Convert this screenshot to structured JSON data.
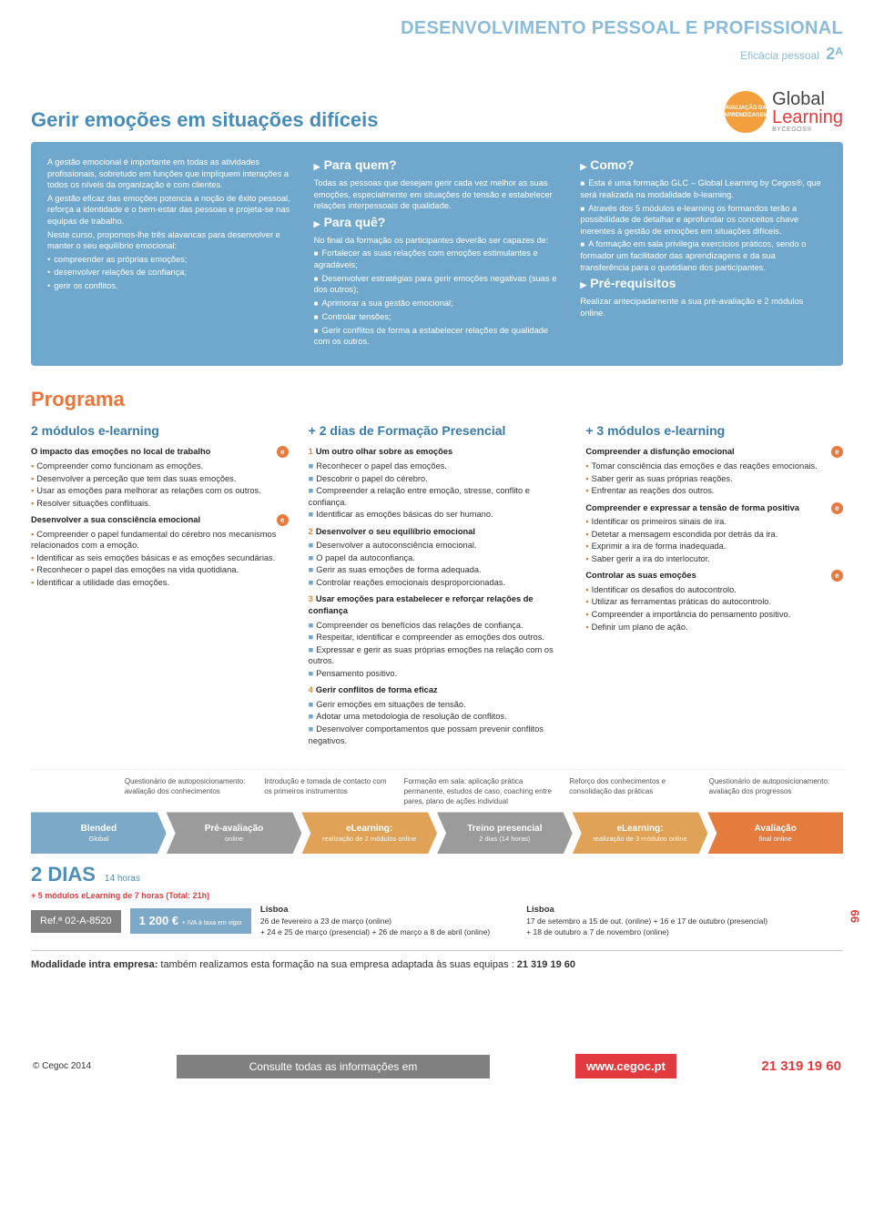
{
  "header": {
    "category": "DESENVOLVIMENTO PESSOAL E PROFISSIONAL",
    "subcategory": "Eficácia pessoal",
    "code": "2ᴬ"
  },
  "course": {
    "title": "Gerir emoções em situações difíceis",
    "badge": "AVALIAÇÃO DA APRENDIZAGEM",
    "logo_global": "Global",
    "logo_learning": "Learning",
    "logo_by": "BYCEGOS®"
  },
  "info": {
    "c1": {
      "p": [
        "A gestão emocional é importante em todas as atividades profissionais, sobretudo em funções que impliquem interações a todos os níveis da organização e com clientes.",
        "A gestão eficaz das emoções potencia a noção de êxito pessoal, reforça a identidade e o bem-estar das pessoas e projeta-se nas equipas de trabalho.",
        "Neste curso, propomos-lhe três alavancas para desenvolver e manter o seu equilíbrio emocional:"
      ],
      "b": [
        "compreender as próprias emoções;",
        "desenvolver relações de confiança;",
        "gerir os conflitos."
      ]
    },
    "c2": {
      "h1": "Para quem?",
      "p1": "Todas as pessoas que desejam gerir cada vez melhor as suas emoções, especialmente em situações de tensão e estabelecer relações interpessoais de qualidade.",
      "h2": "Para quê?",
      "p2": "No final da formação os participantes deverão ser capazes de:",
      "b": [
        "Fortalecer as suas relações com emoções estimulantes e agradáveis;",
        "Desenvolver estratégias para gerir emoções negativas (suas e dos outros);",
        "Aprimorar a sua gestão emocional;",
        "Controlar tensões;",
        "Gerir conflitos de forma a estabelecer relações de qualidade com os outros."
      ]
    },
    "c3": {
      "h1": "Como?",
      "b": [
        "Esta é uma formação GLC – Global Learning by Cegos®, que será realizada na modalidade b-learning.",
        "Através dos 5 módulos e-learning os formandos terão a possibilidade de detalhar e aprofundar os conceitos chave inerentes à gestão de emoções em situações difíceis.",
        "A formação em sala privilegia exercícios práticos, sendo o formador um facilitador das aprendizagens e da sua transferência para o quotidiano dos participantes."
      ],
      "h2": "Pré-requisitos",
      "p2": "Realizar antecipadamente a sua pré-avaliação e 2 módulos online."
    }
  },
  "programa": {
    "title": "Programa",
    "col1": {
      "sub": "2 módulos e-learning",
      "m1": "O impacto das emoções no local de trabalho",
      "m1i": [
        "Compreender como funcionam as emoções.",
        "Desenvolver a perceção que tem das suas emoções.",
        "Usar as emoções para melhorar as relações com os outros.",
        "Resolver situações conflituais."
      ],
      "m2": "Desenvolver a sua consciência emocional",
      "m2i": [
        "Compreender o papel fundamental do cérebro nos mecanismos relacionados com a emoção.",
        "Identificar as seis emoções básicas e as emoções secundárias.",
        "Reconhecer o papel das emoções na vida quotidiana.",
        "Identificar a utilidade das emoções."
      ]
    },
    "col2": {
      "sub": "2 dias de Formação Presencial",
      "m1": {
        "n": "1",
        "t": "Um outro olhar sobre as emoções"
      },
      "m1i": [
        "Reconhecer o papel das emoções.",
        "Descobrir o papel do cérebro.",
        "Compreender a relação entre emoção, stresse, conflito e confiança.",
        "Identificar as emoções básicas do ser humano."
      ],
      "m2": {
        "n": "2",
        "t": "Desenvolver o seu equilíbrio emocional"
      },
      "m2i": [
        "Desenvolver a autoconsciência emocional.",
        "O papel da autoconfiança.",
        "Gerir as suas emoções de forma adequada.",
        "Controlar reações emocionais desproporcionadas."
      ],
      "m3": {
        "n": "3",
        "t": "Usar emoções para estabelecer e reforçar relações de confiança"
      },
      "m3i": [
        "Compreender os benefícios das relações de confiança.",
        "Respeitar, identificar e compreender as emoções dos outros.",
        "Expressar e gerir as suas próprias emoções na relação com os outros.",
        "Pensamento positivo."
      ],
      "m4": {
        "n": "4",
        "t": "Gerir conflitos de forma eficaz"
      },
      "m4i": [
        "Gerir emoções em situações de tensão.",
        "Adotar uma metodologia de resolução de conflitos.",
        "Desenvolver comportamentos que possam prevenir conflitos negativos."
      ]
    },
    "col3": {
      "sub": "3 módulos e-learning",
      "m1": "Compreender a disfunção emocional",
      "m1i": [
        "Tomar consciência das emoções e das reações emocionais.",
        "Saber gerir as suas próprias reações.",
        "Enfrentar as reações dos outros."
      ],
      "m2": "Compreender e expressar a tensão de forma positiva",
      "m2i": [
        "Identificar os primeiros sinais de ira.",
        "Detetar a mensagem escondida por detrás da ira.",
        "Exprimir a ira de forma inadequada.",
        "Saber gerir a ira do interlocutor."
      ],
      "m3": "Controlar as suas emoções",
      "m3i": [
        "Identificar os desafios do autocontrolo.",
        "Utilizar as ferramentas práticas do autocontrolo.",
        "Compreender a importância do pensamento positivo.",
        "Definir um plano de ação."
      ]
    }
  },
  "timeline": {
    "descs": [
      "Questionário de autoposicionamento: avaliação dos conhecimentos",
      "Introdução e tomada de contacto com os primeiros instrumentos",
      "Formação em sala: aplicação prática permanente, estudos de caso, coaching entre pares, plano de ações individual",
      "Reforço dos conhecimentos e consolidação das práticas",
      "Questionário de autoposicionamento: avaliação dos progressos"
    ],
    "segs": [
      {
        "t": "Blended",
        "s": "Global",
        "c": "#7ca9c7"
      },
      {
        "t": "Pré-avaliação",
        "s": "online",
        "c": "#9b9b9b"
      },
      {
        "t": "eLearning:",
        "s": "realização de 2 módulos online",
        "c": "#dfa256"
      },
      {
        "t": "Treino presencial",
        "s": "2 dias (14 horas)",
        "c": "#9b9b9b"
      },
      {
        "t": "eLearning:",
        "s": "realização de 3 módulos online",
        "c": "#dfa256"
      },
      {
        "t": "Avaliação",
        "s": "final online",
        "c": "#e67b3e"
      }
    ]
  },
  "meta": {
    "days": "2 DIAS",
    "hours": "14 horas",
    "red": "+ 5 módulos eLearning de 7 horas (Total: 21h)",
    "ref": "Ref.ª 02-A-8520",
    "price": "1 200 €",
    "price_note": "+ IVA à taxa em vigor",
    "city1": "Lisboa",
    "city1l1": "26 de fevereiro a 23 de março (online)",
    "city1l2": "+ 24 e 25 de março (presencial) + 26 de março a 8 de abril (online)",
    "city2": "Lisboa",
    "city2l1": "17 de setembro a 15 de out. (online) + 16 e 17 de outubro (presencial)",
    "city2l2": "+ 18 de outubro a 7 de novembro (online)",
    "modal_b": "Modalidade intra empresa:",
    "modal_t": " também realizamos esta formação na sua empresa adaptada às suas equipas : ",
    "modal_tel": "21 319 19 60"
  },
  "footer": {
    "copy": "© Cegoc 2014",
    "info": "Consulte todas as informações em",
    "url": "www.cegoc.pt",
    "tel": "21 319 19 60",
    "page": "99"
  }
}
